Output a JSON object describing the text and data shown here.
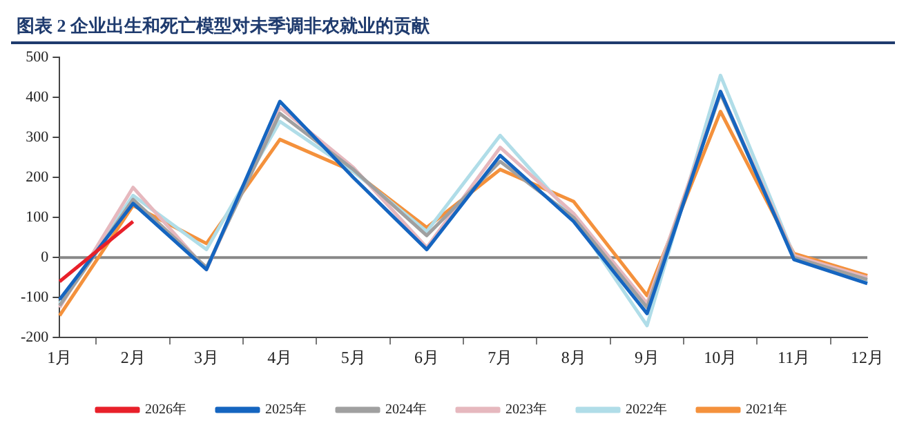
{
  "chart_data": {
    "type": "line",
    "title": "图表 2   企业出生和死亡模型对未季调非农就业的贡献",
    "categories": [
      "1月",
      "2月",
      "3月",
      "4月",
      "5月",
      "6月",
      "7月",
      "8月",
      "9月",
      "10月",
      "11月",
      "12月"
    ],
    "series": [
      {
        "name": "2026年",
        "color": "#e8202a",
        "values": [
          -60,
          90,
          null,
          null,
          null,
          null,
          null,
          null,
          null,
          null,
          null,
          null
        ]
      },
      {
        "name": "2025年",
        "color": "#1565c0",
        "values": [
          -105,
          135,
          -30,
          390,
          200,
          20,
          255,
          90,
          -140,
          415,
          -5,
          -65
        ]
      },
      {
        "name": "2024年",
        "color": "#a0a0a0",
        "values": [
          -120,
          145,
          -25,
          360,
          220,
          55,
          240,
          100,
          -125,
          410,
          0,
          -55
        ]
      },
      {
        "name": "2023年",
        "color": "#e6b8be",
        "values": [
          -125,
          175,
          -30,
          375,
          225,
          25,
          275,
          110,
          -115,
          415,
          5,
          -50
        ]
      },
      {
        "name": "2022年",
        "color": "#b0dde8",
        "values": [
          -115,
          155,
          20,
          340,
          215,
          65,
          305,
          100,
          -170,
          455,
          5,
          -60
        ]
      },
      {
        "name": "2021年",
        "color": "#f4913c",
        "values": [
          -145,
          130,
          35,
          295,
          215,
          75,
          220,
          140,
          -95,
          365,
          10,
          -45
        ]
      }
    ],
    "ylim": [
      -200,
      500
    ],
    "yticks": [
      -200,
      -100,
      0,
      100,
      200,
      300,
      400,
      500
    ],
    "ref_lines": [
      {
        "axis": "y",
        "value": 0,
        "color": "#888888"
      }
    ],
    "grid": false,
    "legend": "bottom",
    "marker": "none",
    "line_style": "solid"
  }
}
